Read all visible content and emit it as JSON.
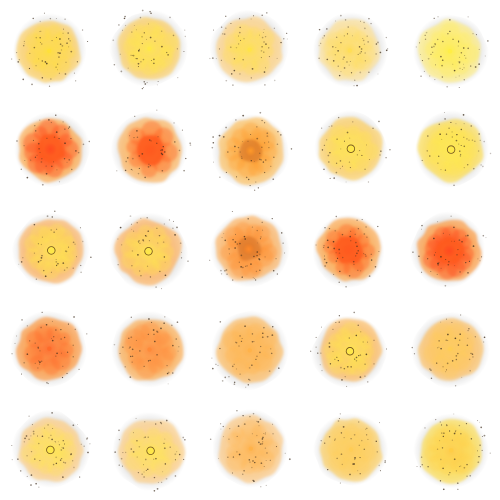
{
  "grid": {
    "rows": 5,
    "cols": 5
  },
  "palette": {
    "halo": "#d9d9d9",
    "background": "#ffffff",
    "yellow": "#ffe94a",
    "yellow_orange": "#ffc23a",
    "orange": "#ff9e3a",
    "red_orange": "#ff5a1f",
    "dark_ring": "#d0691b",
    "speckle": "#3a2a1a"
  },
  "patterns": [
    {
      "body": "#ffd36a",
      "core": "#ffdf3a",
      "ring": "none",
      "intensity": 0.6
    },
    {
      "body": "#ffd36a",
      "core": "#ffe84a",
      "ring": "none",
      "intensity": 0.6
    },
    {
      "body": "#ffd58a",
      "core": "#ffe34a",
      "ring": "none",
      "intensity": 0.5
    },
    {
      "body": "#ffe39a",
      "core": "#ffdd55",
      "ring": "none",
      "intensity": 0.4
    },
    {
      "body": "#ffee88",
      "core": "#ffee44",
      "ring": "none",
      "intensity": 0.3
    },
    {
      "body": "#ffae55",
      "core": "#ff4a1f",
      "ring": "red",
      "intensity": 0.9
    },
    {
      "body": "#ffb865",
      "core": "#ff5a1f",
      "ring": "red",
      "intensity": 0.8
    },
    {
      "body": "#ffc56a",
      "core": "#ff9a2a",
      "ring": "dark",
      "intensity": 0.6
    },
    {
      "body": "#ffd36a",
      "core": "#ffe84a",
      "ring": "dot",
      "intensity": 0.5
    },
    {
      "body": "#ffe05a",
      "core": "#ffe94a",
      "ring": "dot",
      "intensity": 0.4
    },
    {
      "body": "#ffb86a",
      "core": "#ffe84a",
      "ring": "dot",
      "intensity": 0.5
    },
    {
      "body": "#ffb86a",
      "core": "#ffe84a",
      "ring": "dot",
      "intensity": 0.5
    },
    {
      "body": "#ffb86a",
      "core": "#ff8a2a",
      "ring": "dark",
      "intensity": 0.6
    },
    {
      "body": "#ffad55",
      "core": "#ff5a1f",
      "ring": "red",
      "intensity": 0.8
    },
    {
      "body": "#ffa04a",
      "core": "#ff4a1f",
      "ring": "red",
      "intensity": 0.9
    },
    {
      "body": "#ff9f4a",
      "core": "#ff6a2a",
      "ring": "none",
      "intensity": 0.8
    },
    {
      "body": "#ffb25a",
      "core": "#ff8a3a",
      "ring": "none",
      "intensity": 0.7
    },
    {
      "body": "#ffc06a",
      "core": "#ffb24a",
      "ring": "none",
      "intensity": 0.6
    },
    {
      "body": "#ffc06a",
      "core": "#ffe84a",
      "ring": "dot",
      "intensity": 0.5
    },
    {
      "body": "#ffc46a",
      "core": "#ffcc55",
      "ring": "none",
      "intensity": 0.5
    },
    {
      "body": "#ffd18a",
      "core": "#ffe84a",
      "ring": "dot",
      "intensity": 0.4
    },
    {
      "body": "#ffd18a",
      "core": "#ffe84a",
      "ring": "dot",
      "intensity": 0.4
    },
    {
      "body": "#ffcc88",
      "core": "#ffb24a",
      "ring": "none",
      "intensity": 0.4
    },
    {
      "body": "#ffd36a",
      "core": "#ffcc55",
      "ring": "none",
      "intensity": 0.4
    },
    {
      "body": "#ffe05a",
      "core": "#ffcc44",
      "ring": "none",
      "intensity": 0.3
    }
  ]
}
